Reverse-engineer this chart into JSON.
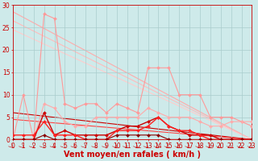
{
  "title": "",
  "xlabel": "Vent moyen/en rafales ( km/h )",
  "ylabel": "",
  "xlim": [
    0,
    23
  ],
  "ylim": [
    0,
    30
  ],
  "yticks": [
    0,
    5,
    10,
    15,
    20,
    25,
    30
  ],
  "xticks": [
    0,
    1,
    2,
    3,
    4,
    5,
    6,
    7,
    8,
    9,
    10,
    11,
    12,
    13,
    14,
    15,
    16,
    17,
    18,
    19,
    20,
    21,
    22,
    23
  ],
  "bg_color": "#ceeaea",
  "grid_color": "#aacccc",
  "series": [
    {
      "x": [
        0,
        23
      ],
      "y": [
        28.5,
        0
      ],
      "color": "#ffaaaa",
      "lw": 0.8,
      "marker": null,
      "ms": 0,
      "zorder": 1
    },
    {
      "x": [
        0,
        23
      ],
      "y": [
        26.5,
        0
      ],
      "color": "#ffbbbb",
      "lw": 0.8,
      "marker": null,
      "ms": 0,
      "zorder": 1
    },
    {
      "x": [
        0,
        23
      ],
      "y": [
        24.5,
        0
      ],
      "color": "#ffcccc",
      "lw": 0.8,
      "marker": null,
      "ms": 0,
      "zorder": 1
    },
    {
      "x": [
        0,
        23
      ],
      "y": [
        6.0,
        0
      ],
      "color": "#cc0000",
      "lw": 0.8,
      "marker": null,
      "ms": 0,
      "zorder": 1
    },
    {
      "x": [
        0,
        23
      ],
      "y": [
        4.5,
        0
      ],
      "color": "#ff4444",
      "lw": 0.8,
      "marker": null,
      "ms": 0,
      "zorder": 1
    },
    {
      "x": [
        0,
        1,
        2,
        3,
        4,
        5,
        6,
        7,
        8,
        9,
        10,
        11,
        12,
        13,
        14,
        15,
        16,
        17,
        18,
        19,
        20,
        21,
        22,
        23
      ],
      "y": [
        0,
        10,
        0,
        28,
        27,
        8,
        7,
        8,
        8,
        6,
        8,
        7,
        6,
        16,
        16,
        16,
        10,
        10,
        10,
        5,
        5,
        5,
        4,
        3
      ],
      "color": "#ff9999",
      "lw": 0.8,
      "marker": "D",
      "ms": 2,
      "zorder": 3
    },
    {
      "x": [
        0,
        1,
        2,
        3,
        4,
        5,
        6,
        7,
        8,
        9,
        10,
        11,
        12,
        13,
        14,
        15,
        16,
        17,
        18,
        19,
        20,
        21,
        22,
        23
      ],
      "y": [
        0,
        0,
        0,
        8,
        7,
        4,
        3,
        3,
        5,
        5,
        5,
        5,
        5,
        7,
        6,
        5,
        5,
        5,
        4,
        3,
        3,
        4,
        4,
        4
      ],
      "color": "#ffaaaa",
      "lw": 0.8,
      "marker": "D",
      "ms": 2,
      "zorder": 3
    },
    {
      "x": [
        0,
        1,
        2,
        3,
        4,
        5,
        6,
        7,
        8,
        9,
        10,
        11,
        12,
        13,
        14,
        15,
        16,
        17,
        18,
        19,
        20,
        21,
        22,
        23
      ],
      "y": [
        0,
        0,
        0,
        6,
        1,
        2,
        1,
        1,
        1,
        1,
        2,
        3,
        3,
        4,
        5,
        3,
        2,
        1,
        1,
        1,
        0,
        0,
        0,
        0
      ],
      "color": "#cc0000",
      "lw": 1.0,
      "marker": "D",
      "ms": 2,
      "zorder": 4
    },
    {
      "x": [
        0,
        1,
        2,
        3,
        4,
        5,
        6,
        7,
        8,
        9,
        10,
        11,
        12,
        13,
        14,
        15,
        16,
        17,
        18,
        19,
        20,
        21,
        22,
        23
      ],
      "y": [
        1,
        1,
        1,
        4,
        1,
        1,
        1,
        0,
        0,
        0,
        2,
        2,
        2,
        3,
        5,
        3,
        2,
        2,
        1,
        0,
        0,
        0,
        0,
        0
      ],
      "color": "#ff2222",
      "lw": 1.0,
      "marker": "D",
      "ms": 2,
      "zorder": 4
    },
    {
      "x": [
        0,
        1,
        2,
        3,
        4,
        5,
        6,
        7,
        8,
        9,
        10,
        11,
        12,
        13,
        14,
        15,
        16,
        17,
        18,
        19,
        20,
        21,
        22,
        23
      ],
      "y": [
        0,
        0,
        0,
        1,
        0,
        0,
        0,
        0,
        0,
        0,
        1,
        1,
        1,
        1,
        1,
        0,
        0,
        0,
        0,
        0,
        0,
        0,
        0,
        0
      ],
      "color": "#880000",
      "lw": 0.8,
      "marker": "D",
      "ms": 2,
      "zorder": 4
    }
  ],
  "xlabel_fontsize": 7,
  "tick_fontsize": 5.5
}
